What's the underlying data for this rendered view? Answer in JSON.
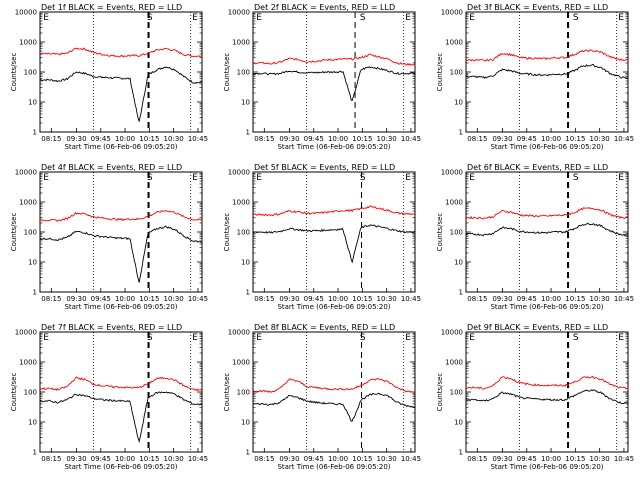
{
  "figure": {
    "x_ticks": [
      "08:15",
      "09:30",
      "09:45",
      "10:00",
      "10:15",
      "10:30",
      "10:45"
    ],
    "y_ticks": [
      "1",
      "10",
      "100",
      "1000",
      "10000"
    ],
    "xlabel": "Start Time (06-Feb-06 09:05:20)",
    "ylabel": "Counts/sec",
    "markers": [
      "E",
      "S",
      "E"
    ],
    "colors": {
      "events": "#000000",
      "lld": "#ff0000"
    }
  },
  "chart_data": [
    {
      "type": "line",
      "title": "Det 1f BLACK = Events, RED = LLD",
      "ylim": [
        1,
        10000
      ],
      "log_y": true,
      "series": [
        {
          "name": "Events",
          "color": "#000000",
          "profile": [
            55,
            55,
            50,
            58,
            100,
            90,
            70,
            66,
            64,
            62,
            60,
            2,
            80,
            120,
            150,
            120,
            70,
            45,
            44
          ]
        },
        {
          "name": "LLD",
          "color": "#ff0000",
          "profile": [
            400,
            400,
            390,
            420,
            620,
            580,
            440,
            380,
            350,
            340,
            350,
            350,
            420,
            540,
            600,
            520,
            380,
            340,
            340
          ]
        }
      ]
    },
    {
      "type": "line",
      "title": "Det 2f BLACK = Events, RED = LLD",
      "ylim": [
        1,
        10000
      ],
      "log_y": true,
      "series": [
        {
          "name": "Events",
          "color": "#000000",
          "profile": [
            90,
            90,
            85,
            90,
            110,
            100,
            95,
            95,
            100,
            100,
            105,
            10,
            120,
            150,
            130,
            110,
            90,
            90,
            90
          ]
        },
        {
          "name": "LLD",
          "color": "#ff0000",
          "profile": [
            200,
            200,
            190,
            210,
            280,
            260,
            220,
            230,
            250,
            260,
            270,
            270,
            300,
            380,
            320,
            270,
            200,
            180,
            180
          ]
        }
      ]
    },
    {
      "type": "line",
      "title": "Det 3f BLACK = Events, RED = LLD",
      "ylim": [
        1,
        10000
      ],
      "log_y": true,
      "series": [
        {
          "name": "Events",
          "color": "#000000",
          "profile": [
            70,
            70,
            65,
            75,
            120,
            110,
            90,
            85,
            80,
            80,
            85,
            85,
            110,
            160,
            170,
            140,
            90,
            70,
            60
          ]
        },
        {
          "name": "LLD",
          "color": "#ff0000",
          "profile": [
            250,
            250,
            240,
            260,
            420,
            380,
            300,
            290,
            280,
            280,
            300,
            300,
            380,
            500,
            520,
            460,
            320,
            260,
            250
          ]
        }
      ]
    },
    {
      "type": "line",
      "title": "Det 4f BLACK = Events, RED = LLD",
      "ylim": [
        1,
        10000
      ],
      "log_y": true,
      "series": [
        {
          "name": "Events",
          "color": "#000000",
          "profile": [
            60,
            60,
            55,
            65,
            105,
            95,
            75,
            70,
            65,
            62,
            60,
            2,
            90,
            130,
            150,
            120,
            75,
            50,
            48
          ]
        },
        {
          "name": "LLD",
          "color": "#ff0000",
          "profile": [
            250,
            250,
            240,
            280,
            430,
            400,
            320,
            290,
            270,
            260,
            270,
            270,
            330,
            450,
            520,
            450,
            320,
            260,
            250
          ]
        }
      ]
    },
    {
      "type": "line",
      "title": "Det 5f BLACK = Events, RED = LLD",
      "ylim": [
        1,
        10000
      ],
      "log_y": true,
      "series": [
        {
          "name": "Events",
          "color": "#000000",
          "profile": [
            100,
            100,
            95,
            105,
            130,
            120,
            110,
            110,
            115,
            120,
            125,
            10,
            140,
            170,
            150,
            130,
            110,
            100,
            100
          ]
        },
        {
          "name": "LLD",
          "color": "#ff0000",
          "profile": [
            380,
            380,
            370,
            400,
            500,
            470,
            420,
            420,
            450,
            480,
            520,
            520,
            600,
            700,
            620,
            520,
            430,
            400,
            400
          ]
        }
      ]
    },
    {
      "type": "line",
      "title": "Det 6f BLACK = Events, RED = LLD",
      "ylim": [
        1,
        10000
      ],
      "log_y": true,
      "series": [
        {
          "name": "Events",
          "color": "#000000",
          "profile": [
            85,
            85,
            80,
            90,
            140,
            130,
            105,
            100,
            95,
            95,
            100,
            100,
            130,
            180,
            190,
            160,
            110,
            85,
            75
          ]
        },
        {
          "name": "LLD",
          "color": "#ff0000",
          "profile": [
            300,
            300,
            290,
            320,
            500,
            460,
            370,
            350,
            340,
            340,
            360,
            360,
            440,
            600,
            620,
            540,
            380,
            310,
            300
          ]
        }
      ]
    },
    {
      "type": "line",
      "title": "Det 7f BLACK = Events, RED = LLD",
      "ylim": [
        1,
        10000
      ],
      "log_y": true,
      "series": [
        {
          "name": "Events",
          "color": "#000000",
          "profile": [
            50,
            50,
            45,
            55,
            85,
            75,
            60,
            55,
            52,
            50,
            48,
            2,
            65,
            95,
            100,
            85,
            55,
            40,
            38
          ]
        },
        {
          "name": "LLD",
          "color": "#ff0000",
          "profile": [
            130,
            130,
            120,
            150,
            300,
            260,
            180,
            160,
            150,
            145,
            140,
            140,
            190,
            280,
            300,
            250,
            160,
            120,
            115
          ]
        }
      ]
    },
    {
      "type": "line",
      "title": "Det 8f BLACK = Events, RED = LLD",
      "ylim": [
        1,
        10000
      ],
      "log_y": true,
      "series": [
        {
          "name": "Events",
          "color": "#000000",
          "profile": [
            40,
            40,
            38,
            45,
            75,
            65,
            50,
            45,
            42,
            40,
            40,
            10,
            55,
            80,
            90,
            75,
            45,
            35,
            32
          ]
        },
        {
          "name": "LLD",
          "color": "#ff0000",
          "profile": [
            110,
            110,
            100,
            130,
            260,
            230,
            150,
            140,
            130,
            125,
            125,
            125,
            165,
            250,
            270,
            220,
            140,
            105,
            100
          ]
        }
      ]
    },
    {
      "type": "line",
      "title": "Det 9f BLACK = Events, RED = LLD",
      "ylim": [
        1,
        10000
      ],
      "log_y": true,
      "series": [
        {
          "name": "Events",
          "color": "#000000",
          "profile": [
            55,
            55,
            50,
            60,
            95,
            85,
            65,
            60,
            58,
            56,
            55,
            55,
            75,
            105,
            115,
            95,
            60,
            45,
            42
          ]
        },
        {
          "name": "LLD",
          "color": "#ff0000",
          "profile": [
            140,
            140,
            130,
            160,
            320,
            280,
            200,
            180,
            170,
            165,
            165,
            165,
            210,
            300,
            320,
            270,
            180,
            140,
            130
          ]
        }
      ]
    }
  ]
}
